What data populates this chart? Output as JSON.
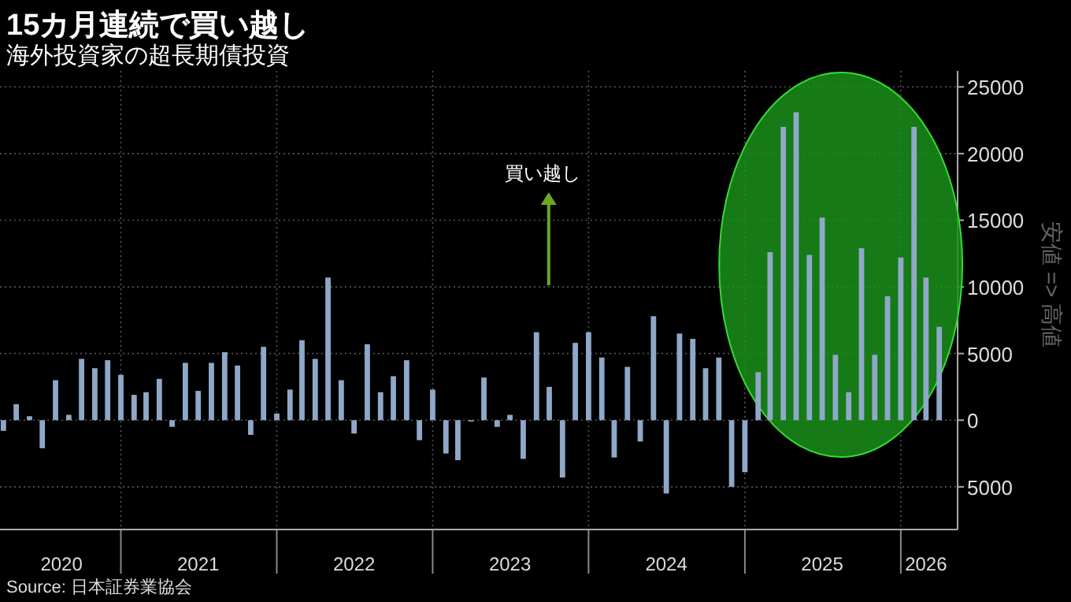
{
  "chart_data": {
    "type": "bar",
    "title": "15カ月連続で買い越し",
    "subtitle": "海外投資家の超長期債投資",
    "x": [
      "2020-04",
      "2020-05",
      "2020-06",
      "2020-07",
      "2020-08",
      "2020-09",
      "2020-10",
      "2020-11",
      "2020-12",
      "2021-01",
      "2021-02",
      "2021-03",
      "2021-04",
      "2021-05",
      "2021-06",
      "2021-07",
      "2021-08",
      "2021-09",
      "2021-10",
      "2021-11",
      "2021-12",
      "2022-01",
      "2022-02",
      "2022-03",
      "2022-04",
      "2022-05",
      "2022-06",
      "2022-07",
      "2022-08",
      "2022-09",
      "2022-10",
      "2022-11",
      "2022-12",
      "2023-01",
      "2023-02",
      "2023-03",
      "2023-04",
      "2023-05",
      "2023-06",
      "2023-07",
      "2023-08",
      "2023-09",
      "2023-10",
      "2023-11",
      "2023-12",
      "2024-01",
      "2024-02",
      "2024-03",
      "2024-04",
      "2024-05",
      "2024-06",
      "2024-07",
      "2024-08",
      "2024-09",
      "2024-10",
      "2024-11",
      "2024-12",
      "2025-01",
      "2025-02",
      "2025-03",
      "2025-04",
      "2025-05",
      "2025-06",
      "2025-07",
      "2025-08",
      "2025-09",
      "2025-10",
      "2025-11",
      "2025-12",
      "2026-01",
      "2026-02",
      "2026-03",
      "2026-04"
    ],
    "values": [
      -800,
      1200,
      300,
      -2100,
      3000,
      400,
      4600,
      3900,
      4500,
      3400,
      1900,
      2100,
      3100,
      -500,
      4300,
      2200,
      4300,
      5100,
      4100,
      -1100,
      5500,
      500,
      2300,
      6000,
      4600,
      10700,
      3000,
      -1000,
      5700,
      2100,
      3300,
      4500,
      -1500,
      2300,
      -2500,
      -3000,
      -100,
      3200,
      -500,
      400,
      -2900,
      6600,
      2500,
      -4300,
      5800,
      6600,
      4700,
      -2800,
      4000,
      -1600,
      7800,
      -5500,
      6500,
      6100,
      3900,
      4700,
      -5000,
      -3900,
      3600,
      12600,
      22000,
      23100,
      12400,
      15200,
      4900,
      2100,
      12900,
      4900,
      9300,
      12200,
      22000,
      10700,
      7000
    ],
    "color": "#8fa8c8",
    "xlim": [
      "2020-03-24",
      "2026-05-14"
    ],
    "xticks": [
      {
        "value": "2021-01",
        "label": null
      },
      {
        "value": "2022-01",
        "label": null
      },
      {
        "value": "2023-01",
        "label": null
      },
      {
        "value": "2024-01",
        "label": null
      },
      {
        "value": "2025-01",
        "label": null
      },
      {
        "value": "2026-01",
        "label": null
      },
      {
        "value": "2020-08-15",
        "label": "2020"
      },
      {
        "value": "2021-07",
        "label": "2021"
      },
      {
        "value": "2022-07",
        "label": "2022"
      },
      {
        "value": "2023-07",
        "label": "2023"
      },
      {
        "value": "2024-07",
        "label": "2024"
      },
      {
        "value": "2025-07",
        "label": "2025"
      },
      {
        "value": "2026-03",
        "label": "2026"
      }
    ],
    "ylim": [
      -8200,
      26200
    ],
    "yticks": [
      {
        "value": -5000,
        "label": "5000"
      },
      0,
      5000,
      10000,
      15000,
      20000,
      25000
    ],
    "grid": true,
    "annotations": [
      "買い越し",
      "安値 => 高値",
      "Source: 日本証券業協会"
    ]
  }
}
